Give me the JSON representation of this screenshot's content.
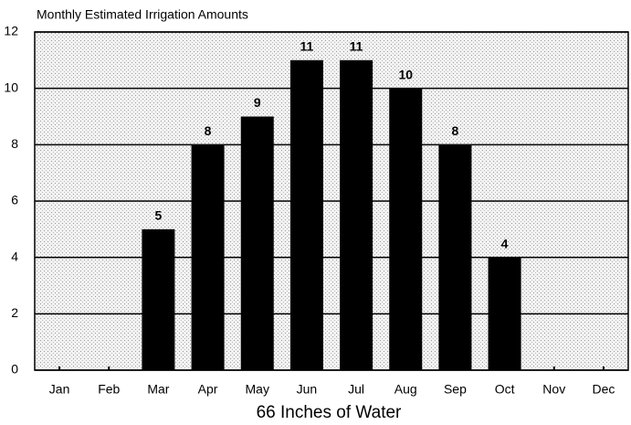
{
  "chart_data": {
    "type": "bar",
    "title": "Monthly Estimated Irrigation Amounts",
    "x_label": "66 Inches of Water",
    "categories": [
      "Jan",
      "Feb",
      "Mar",
      "Apr",
      "May",
      "Jun",
      "Jul",
      "Aug",
      "Sep",
      "Oct",
      "Nov",
      "Dec"
    ],
    "values": [
      0,
      0,
      5,
      8,
      9,
      11,
      11,
      10,
      8,
      4,
      0,
      0
    ],
    "color": "#000000",
    "ylim": [
      0,
      12
    ],
    "yticks": [
      0,
      2,
      4,
      6,
      8,
      10,
      12
    ],
    "grid": true
  }
}
